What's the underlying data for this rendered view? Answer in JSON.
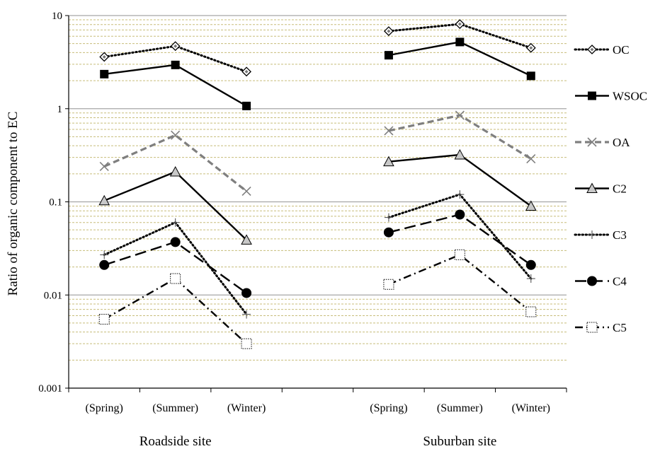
{
  "chart_data": {
    "type": "line",
    "yscale": "log",
    "ylim": [
      0.001,
      10
    ],
    "ylabel": "Ratio of  organic component to EC",
    "yticks": [
      "0.001",
      "0.01",
      "0.1",
      "1",
      "10"
    ],
    "groups": [
      {
        "label": "Roadside site",
        "categories": [
          "(Spring)",
          "(Summer)",
          "(Winter)"
        ]
      },
      {
        "label": "Suburban site",
        "categories": [
          "(Spring)",
          "(Summer)",
          "(Winter)"
        ]
      }
    ],
    "series": [
      {
        "name": "OC",
        "color": "#000000",
        "line": "dotted",
        "marker": "diamond-open",
        "roadside": [
          3.6,
          4.7,
          2.5
        ],
        "suburban": [
          6.8,
          8.1,
          4.5
        ]
      },
      {
        "name": "WSOC",
        "color": "#000000",
        "line": "solid",
        "marker": "square-filled",
        "roadside": [
          2.35,
          2.95,
          1.07
        ],
        "suburban": [
          3.75,
          5.2,
          2.25
        ]
      },
      {
        "name": "OA",
        "color": "#7f7f7f",
        "line": "dashed",
        "marker": "x",
        "roadside": [
          0.24,
          0.52,
          0.13
        ],
        "suburban": [
          0.58,
          0.85,
          0.29
        ]
      },
      {
        "name": "C2",
        "color": "#000000",
        "line": "solid",
        "marker": "triangle-gray",
        "roadside": [
          0.103,
          0.21,
          0.039
        ],
        "suburban": [
          0.27,
          0.32,
          0.09
        ]
      },
      {
        "name": "C3",
        "color": "#000000",
        "line": "dotted",
        "marker": "plus",
        "roadside": [
          0.027,
          0.06,
          0.0062
        ],
        "suburban": [
          0.068,
          0.12,
          0.015
        ]
      },
      {
        "name": "C4",
        "color": "#000000",
        "line": "longdash",
        "marker": "circle-filled",
        "roadside": [
          0.021,
          0.037,
          0.0105
        ],
        "suburban": [
          0.047,
          0.073,
          0.021
        ]
      },
      {
        "name": "C5",
        "color": "#000000",
        "line": "dashdot",
        "marker": "square-open",
        "roadside": [
          0.0055,
          0.015,
          0.003
        ],
        "suburban": [
          0.013,
          0.027,
          0.0066
        ]
      }
    ],
    "grid": {
      "major": true,
      "minor": true,
      "minor_color": "#c8bd7a"
    },
    "legend": "right"
  }
}
